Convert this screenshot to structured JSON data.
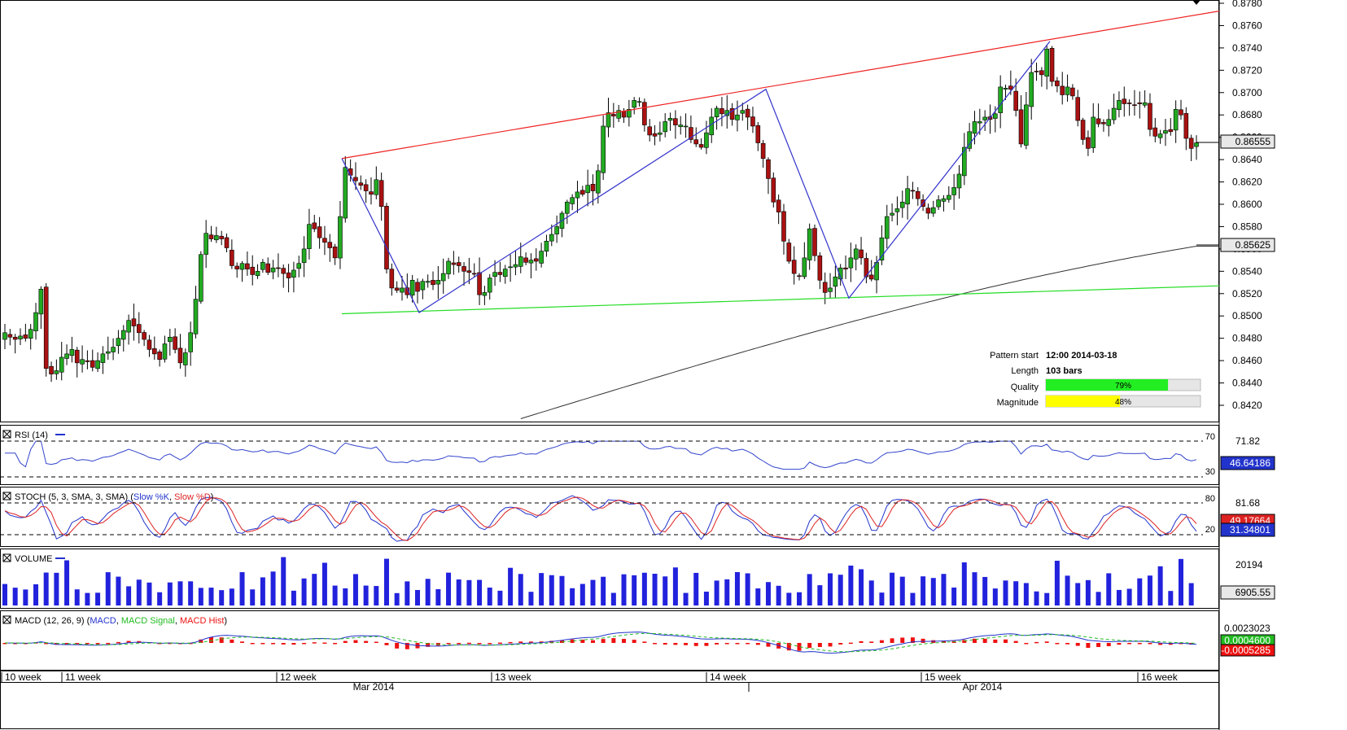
{
  "colors": {
    "bull": "#22aa22",
    "bear": "#aa1111",
    "resistance": "#ee2222",
    "support": "#22dd22",
    "pattern": "#3333cc",
    "ma": "#333333",
    "rsi": "#3344cc",
    "stoch_k": "#2233cc",
    "stoch_d": "#dd2222",
    "volume": "#2222dd",
    "macd": "#2233cc",
    "macd_signal": "#22bb22",
    "macd_hist": "#ee1111",
    "quality_bar": "#22ee22",
    "magnitude_bar": "#ffff00"
  },
  "price_axis": {
    "ticks": [
      "0.8780",
      "0.8760",
      "0.8740",
      "0.8720",
      "0.8700",
      "0.8680",
      "0.8660",
      "0.8640",
      "0.8620",
      "0.8600",
      "0.8580",
      "0.8560",
      "0.8540",
      "0.8520",
      "0.8500",
      "0.8480",
      "0.8460",
      "0.8440",
      "0.8420"
    ],
    "current_price_label": "0.86555",
    "ma_price_label": "0.85625"
  },
  "pattern_info": {
    "start_label": "Pattern start",
    "start_value": "12:00 2014-03-18",
    "length_label": "Length",
    "length_value": "103 bars",
    "quality_label": "Quality",
    "quality_value": "79%",
    "quality_fraction": 0.79,
    "magnitude_label": "Magnitude",
    "magnitude_value": "48%",
    "magnitude_fraction": 0.48
  },
  "panels": {
    "rsi": {
      "label": "RSI (14)",
      "level_high": "70",
      "level_low": "30",
      "top_value": "71.82",
      "current_value": "46.64186"
    },
    "stoch": {
      "label_prefix": "STOCH (5, 3, SMA, 3, SMA)",
      "k_name": "Slow %K",
      "d_name": "Slow %D",
      "level_high": "80",
      "level_low": "20",
      "top_value": "81.68",
      "k_value": "31.34801",
      "d_value": "49.17664"
    },
    "volume": {
      "label": "VOLUME",
      "top_value": "20194",
      "current_value": "6905.55"
    },
    "macd": {
      "label_prefix": "MACD (12, 26, 9)",
      "macd_name": "MACD",
      "signal_name": "MACD Signal",
      "hist_name": "MACD Hist",
      "top_value": "0.0023023",
      "value_signal": "0.0004600",
      "value_macd": "-0.0005285"
    }
  },
  "time_axis": {
    "weeks": [
      "10 week",
      "11 week",
      "12 week",
      "13 week",
      "14 week",
      "15 week",
      "16 week"
    ],
    "months": [
      "Mar 2014",
      "Apr 2014"
    ]
  },
  "chart_data": {
    "type": "candlestick",
    "instrument_unlabeled": true,
    "y_range": [
      0.841,
      0.8785
    ],
    "closes": [
      0.8485,
      0.8481,
      0.8479,
      0.8482,
      0.848,
      0.8488,
      0.8503,
      0.8524,
      0.8453,
      0.8448,
      0.8451,
      0.8463,
      0.8466,
      0.847,
      0.8458,
      0.8461,
      0.8459,
      0.8454,
      0.846,
      0.8466,
      0.8468,
      0.8472,
      0.848,
      0.8487,
      0.8496,
      0.8491,
      0.8485,
      0.8479,
      0.847,
      0.8466,
      0.8461,
      0.8475,
      0.8481,
      0.847,
      0.8458,
      0.8467,
      0.8485,
      0.8515,
      0.8555,
      0.8574,
      0.8569,
      0.8572,
      0.8569,
      0.8561,
      0.8545,
      0.8542,
      0.8547,
      0.8542,
      0.8537,
      0.854,
      0.8548,
      0.8539,
      0.8543,
      0.8543,
      0.8538,
      0.8534,
      0.8541,
      0.8547,
      0.856,
      0.8582,
      0.8578,
      0.857,
      0.8566,
      0.8561,
      0.8552,
      0.8589,
      0.8633,
      0.8626,
      0.8621,
      0.8617,
      0.8612,
      0.8609,
      0.8622,
      0.8598,
      0.8542,
      0.8525,
      0.8523,
      0.8525,
      0.8519,
      0.8532,
      0.8522,
      0.8531,
      0.8531,
      0.8528,
      0.8532,
      0.8538,
      0.8549,
      0.8546,
      0.8545,
      0.854,
      0.8539,
      0.8538,
      0.8519,
      0.8521,
      0.8534,
      0.8539,
      0.8537,
      0.8542,
      0.8544,
      0.8546,
      0.8553,
      0.8548,
      0.855,
      0.8549,
      0.8558,
      0.8567,
      0.8573,
      0.858,
      0.8592,
      0.8602,
      0.8606,
      0.8611,
      0.8609,
      0.8617,
      0.8612,
      0.863,
      0.867,
      0.8682,
      0.8679,
      0.8684,
      0.8678,
      0.8685,
      0.8693,
      0.8692,
      0.8671,
      0.8662,
      0.8661,
      0.8664,
      0.8674,
      0.8677,
      0.8671,
      0.8671,
      0.867,
      0.8658,
      0.8654,
      0.8651,
      0.8664,
      0.8678,
      0.8686,
      0.8681,
      0.8684,
      0.8676,
      0.868,
      0.8684,
      0.8678,
      0.867,
      0.8655,
      0.8641,
      0.8623,
      0.8602,
      0.8593,
      0.8567,
      0.8549,
      0.8538,
      0.8536,
      0.8552,
      0.8578,
      0.8554,
      0.8532,
      0.8521,
      0.8525,
      0.8535,
      0.8543,
      0.8542,
      0.8552,
      0.856,
      0.8552,
      0.8535,
      0.8533,
      0.8548,
      0.857,
      0.8589,
      0.8592,
      0.8596,
      0.8602,
      0.8614,
      0.8612,
      0.8605,
      0.8598,
      0.8592,
      0.8597,
      0.8604,
      0.8605,
      0.8608,
      0.8615,
      0.8627,
      0.8651,
      0.8665,
      0.8674,
      0.8674,
      0.8678,
      0.8676,
      0.8681,
      0.8705,
      0.8704,
      0.8703,
      0.8684,
      0.8654,
      0.8689,
      0.8718,
      0.8719,
      0.8716,
      0.8739,
      0.871,
      0.8706,
      0.8698,
      0.8705,
      0.8697,
      0.8675,
      0.8658,
      0.865,
      0.8678,
      0.8672,
      0.8672,
      0.8676,
      0.8686,
      0.8693,
      0.869,
      0.869,
      0.8689,
      0.869,
      0.8691,
      0.8667,
      0.8661,
      0.8663,
      0.8666,
      0.8665,
      0.8685,
      0.868,
      0.8659,
      0.865,
      0.8655
    ],
    "overlays": {
      "resistance_line": {
        "from": [
          0.8641,
          "2014-03-18"
        ],
        "to": [
          0.8773,
          "end"
        ]
      },
      "support_line": {
        "level_start": 0.8502,
        "level_end": 0.8527
      },
      "moving_average_last": 0.85625
    }
  }
}
